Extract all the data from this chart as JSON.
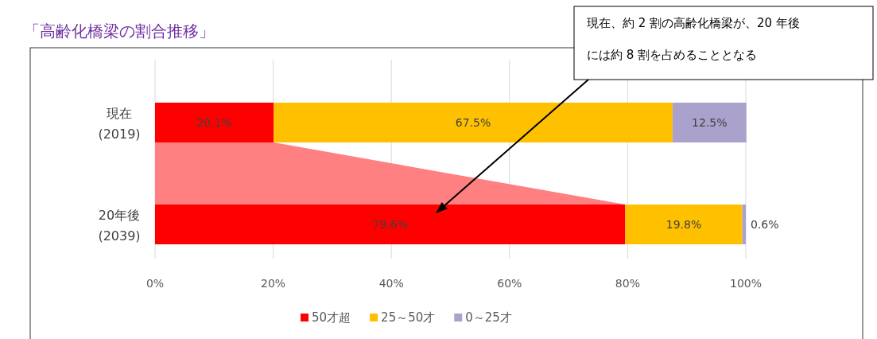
{
  "chart_data": {
    "type": "bar",
    "orientation": "horizontal",
    "stacked": true,
    "title": "「高齢化橋梁の割合推移」",
    "categories": [
      "現在\n(2019)",
      "20年後\n(2039)"
    ],
    "series": [
      {
        "name": "50才超",
        "color": "#ff0000",
        "values": [
          20.1,
          79.6
        ]
      },
      {
        "name": "25～50才",
        "color": "#ffc000",
        "values": [
          67.5,
          19.8
        ]
      },
      {
        "name": "0～25才",
        "color": "#aaa2cc",
        "values": [
          12.5,
          0.6
        ]
      }
    ],
    "value_labels": [
      [
        "20.1%",
        "79.6%"
      ],
      [
        "67.5%",
        "19.8%"
      ],
      [
        "12.5%",
        "0.6%"
      ]
    ],
    "xlim": [
      0,
      100
    ],
    "xticks": [
      {
        "value": 0,
        "label": "0%"
      },
      {
        "value": 20,
        "label": "20%"
      },
      {
        "value": 40,
        "label": "40%"
      },
      {
        "value": 60,
        "label": "60%"
      },
      {
        "value": 80,
        "label": "80%"
      },
      {
        "value": 100,
        "label": "100%"
      }
    ],
    "grid": "x",
    "legend": "bottom",
    "annotations": [
      "現在、約 2 割の高齢化橋梁が、20 年後には約 8 割を占めることとなる"
    ]
  }
}
